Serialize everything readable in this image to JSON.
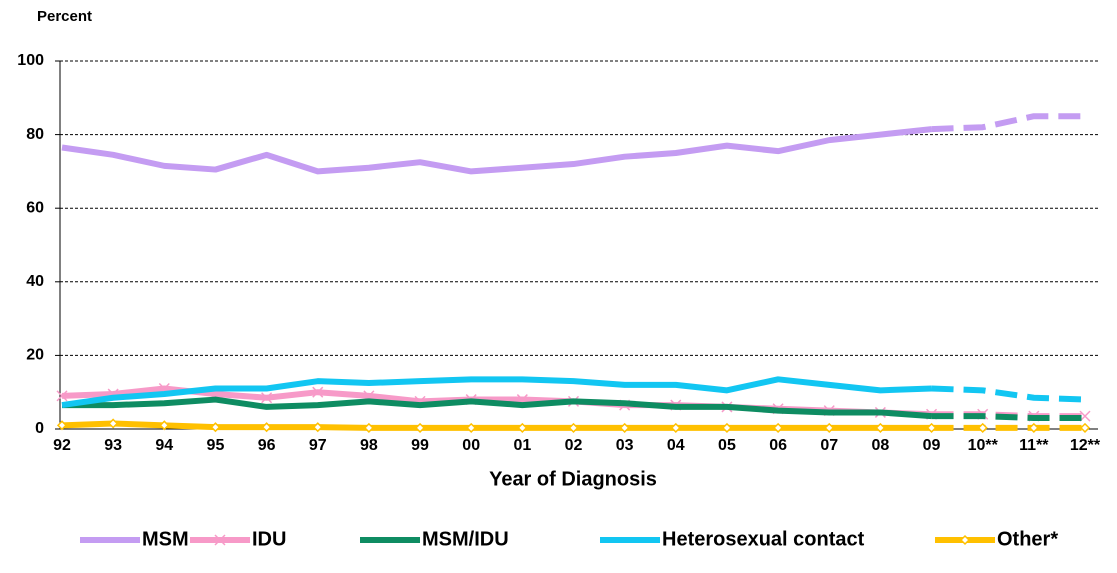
{
  "chart_data": {
    "type": "line",
    "y_label": "Percent",
    "x_label": "Year of Diagnosis",
    "categories": [
      "92",
      "93",
      "94",
      "95",
      "96",
      "97",
      "98",
      "99",
      "00",
      "01",
      "02",
      "03",
      "04",
      "05",
      "06",
      "07",
      "08",
      "09",
      "10**",
      "11**",
      "12**"
    ],
    "dashed_from": "09",
    "ylim": [
      0,
      100
    ],
    "yticks": [
      0,
      20,
      40,
      60,
      80,
      100
    ],
    "grid": true,
    "series": [
      {
        "name": "MSM",
        "color": "#c49cf2",
        "marker": "none",
        "values": [
          76.5,
          74.5,
          71.5,
          70.5,
          74.5,
          70,
          71,
          72.5,
          70,
          71,
          72,
          74,
          75,
          77,
          75.5,
          78.5,
          80,
          81.5,
          82,
          85,
          85
        ]
      },
      {
        "name": "IDU",
        "color": "#f79ac8",
        "marker": "x",
        "values": [
          9,
          9.5,
          11,
          9.5,
          8.5,
          10,
          9,
          7.5,
          8,
          8,
          7.5,
          6.5,
          6.5,
          6,
          5.5,
          5,
          4.5,
          4,
          4,
          3.5,
          3.5
        ]
      },
      {
        "name": "MSM/IDU",
        "color": "#0e8c62",
        "marker": "none",
        "values": [
          6.5,
          6.5,
          7,
          8,
          6,
          6.5,
          7.5,
          6.5,
          7.5,
          6.5,
          7.5,
          7,
          6,
          6,
          5,
          4.5,
          4.5,
          3.5,
          3.5,
          3,
          3
        ]
      },
      {
        "name": "Heterosexual contact",
        "color": "#12c6f2",
        "marker": "none",
        "values": [
          6.5,
          8.5,
          9.5,
          11,
          11,
          13,
          12.5,
          13,
          13.5,
          13.5,
          13,
          12,
          12,
          10.5,
          13.5,
          12,
          10.5,
          11,
          10.5,
          8.5,
          8
        ]
      },
      {
        "name": "Other*",
        "color": "#ffc000",
        "marker": "diamond",
        "values": [
          1,
          1.5,
          1,
          0.5,
          0.5,
          0.5,
          0.3,
          0.3,
          0.3,
          0.3,
          0.3,
          0.3,
          0.3,
          0.3,
          0.3,
          0.3,
          0.3,
          0.3,
          0.3,
          0.3,
          0.3
        ]
      }
    ]
  }
}
